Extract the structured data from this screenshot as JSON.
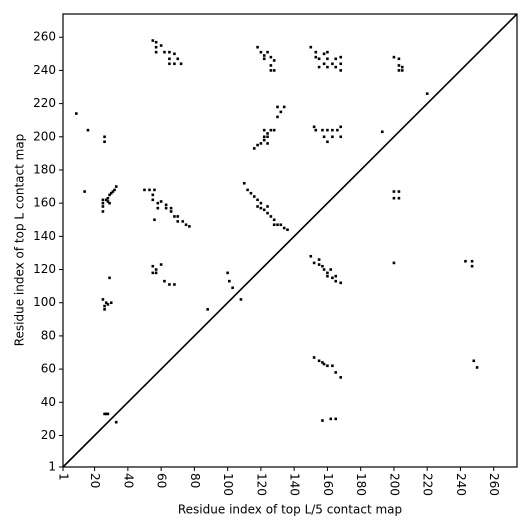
{
  "chart_data": {
    "type": "scatter",
    "x_label": "Residue index of top L/5 contact map",
    "y_label": "Residue index of top L contact map",
    "color": "#000000",
    "xlim": [
      1,
      274
    ],
    "ylim": [
      1,
      274
    ],
    "xticks": [
      1,
      20,
      40,
      60,
      80,
      100,
      120,
      140,
      160,
      180,
      200,
      220,
      240,
      260
    ],
    "yticks": [
      1,
      20,
      40,
      60,
      80,
      100,
      120,
      140,
      160,
      180,
      200,
      220,
      240,
      260
    ],
    "x": [
      9,
      16,
      26,
      26,
      25,
      25,
      25,
      25,
      27,
      28,
      29,
      30,
      31,
      32,
      33,
      28,
      29,
      14,
      50,
      53,
      56,
      55,
      55,
      58,
      60,
      63,
      63,
      66,
      66,
      68,
      70,
      70,
      73,
      75,
      77,
      58,
      56,
      55,
      57,
      57,
      60,
      57,
      62,
      65,
      68,
      65,
      65,
      68,
      70,
      72,
      116,
      118,
      120,
      122,
      124,
      122,
      124,
      122,
      126,
      128,
      124,
      130,
      132,
      130,
      134,
      110,
      112,
      114,
      116,
      118,
      120,
      118,
      120,
      122,
      124,
      126,
      128,
      128,
      130,
      132,
      134,
      136,
      124,
      118,
      120,
      122,
      124,
      126,
      128,
      126,
      128,
      126,
      122,
      150,
      153,
      153,
      155,
      158,
      160,
      160,
      158,
      160,
      163,
      165,
      165,
      168,
      168,
      168,
      155,
      152,
      153,
      157,
      160,
      163,
      166,
      168,
      158,
      163,
      160,
      168,
      193,
      200,
      203,
      203,
      205,
      205,
      203,
      220,
      26,
      27,
      28,
      33,
      25,
      27,
      28,
      30,
      26,
      26,
      29,
      55,
      57,
      57,
      60,
      55,
      62,
      65,
      68,
      88,
      100,
      101,
      103,
      108,
      150,
      152,
      155,
      157,
      158,
      160,
      162,
      160,
      163,
      165,
      168,
      165,
      155,
      200,
      243,
      247,
      247,
      152,
      155,
      157,
      158,
      160,
      163,
      165,
      168,
      157,
      162,
      165,
      248,
      250,
      203,
      203,
      200,
      200
    ],
    "y": [
      214,
      204,
      200,
      197,
      162,
      160,
      158,
      155,
      162,
      163,
      165,
      166,
      167,
      168,
      170,
      161,
      160,
      167,
      168,
      168,
      168,
      165,
      162,
      160,
      161,
      159,
      157,
      157,
      155,
      152,
      152,
      149,
      149,
      147,
      146,
      157,
      150,
      258,
      257,
      254,
      255,
      251,
      251,
      251,
      250,
      247,
      244,
      244,
      247,
      244,
      193,
      195,
      196,
      198,
      200,
      200,
      202,
      204,
      204,
      204,
      196,
      212,
      215,
      218,
      218,
      172,
      168,
      166,
      164,
      162,
      160,
      158,
      157,
      156,
      154,
      152,
      150,
      147,
      147,
      147,
      145,
      144,
      158,
      254,
      251,
      249,
      251,
      248,
      246,
      243,
      240,
      240,
      247,
      254,
      251,
      248,
      247,
      250,
      251,
      247,
      244,
      242,
      244,
      247,
      242,
      248,
      244,
      240,
      242,
      206,
      204,
      204,
      204,
      204,
      204,
      206,
      200,
      200,
      197,
      200,
      203,
      248,
      247,
      243,
      242,
      240,
      240,
      226,
      33,
      33,
      33,
      28,
      102,
      100,
      99,
      100,
      98,
      96,
      115,
      122,
      120,
      118,
      123,
      118,
      113,
      111,
      111,
      96,
      118,
      113,
      109,
      102,
      128,
      124,
      126,
      122,
      120,
      118,
      120,
      116,
      115,
      113,
      112,
      116,
      123,
      124,
      125,
      122,
      125,
      67,
      65,
      64,
      63,
      62,
      62,
      58,
      55,
      29,
      30,
      30,
      65,
      61,
      167,
      163,
      163,
      167
    ]
  }
}
